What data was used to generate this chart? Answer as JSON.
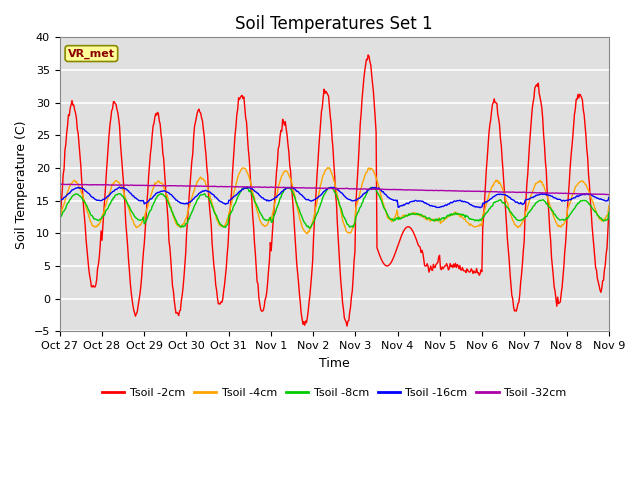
{
  "title": "Soil Temperatures Set 1",
  "xlabel": "Time",
  "ylabel": "Soil Temperature (C)",
  "ylim": [
    -5,
    40
  ],
  "yticks": [
    -5,
    0,
    5,
    10,
    15,
    20,
    25,
    30,
    35,
    40
  ],
  "xtick_labels": [
    "Oct 27",
    "Oct 28",
    "Oct 29",
    "Oct 30",
    "Oct 31",
    "Nov 1",
    "Nov 2",
    "Nov 3",
    "Nov 4",
    "Nov 5",
    "Nov 6",
    "Nov 7",
    "Nov 8",
    "Nov 9"
  ],
  "series_colors": {
    "Tsoil -2cm": "#FF0000",
    "Tsoil -4cm": "#FFA500",
    "Tsoil -8cm": "#00CC00",
    "Tsoil -16cm": "#0000FF",
    "Tsoil -32cm": "#AA00AA"
  },
  "annotation_text": "VR_met",
  "annotation_color": "#8B0000",
  "annotation_bg": "#FFFF99",
  "bg_color": "#E0E0E0",
  "axes_bg": "#FFFFFF",
  "title_fontsize": 12,
  "label_fontsize": 9,
  "tick_fontsize": 8
}
